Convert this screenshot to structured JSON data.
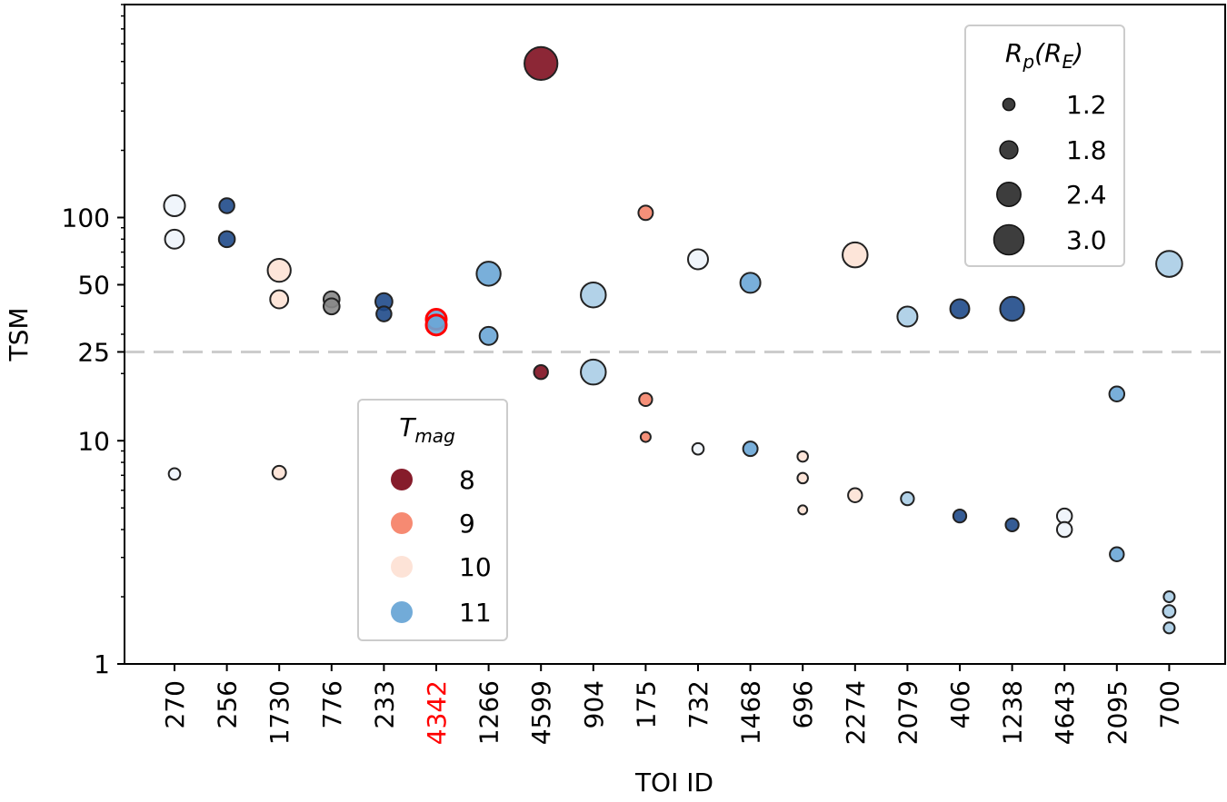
{
  "chart_data": {
    "type": "scatter",
    "xlabel": "TOI ID",
    "ylabel": "TSM",
    "yscale": "log",
    "ylim": [
      1,
      900
    ],
    "yticks": [
      {
        "value": 1,
        "label": "1"
      },
      {
        "value": 10,
        "label": "10"
      },
      {
        "value": 25,
        "label": "25"
      },
      {
        "value": 50,
        "label": "50"
      },
      {
        "value": 100,
        "label": "100"
      }
    ],
    "threshold": {
      "value": 25,
      "style": "dashed",
      "color": "#cccccc"
    },
    "categories": [
      "270",
      "256",
      "1730",
      "776",
      "233",
      "4342",
      "1266",
      "4599",
      "904",
      "175",
      "732",
      "1468",
      "696",
      "2274",
      "2079",
      "406",
      "1238",
      "4643",
      "2095",
      "700"
    ],
    "highlight_category": "4342",
    "highlight_color": "#ff0000",
    "tmag_colors": {
      "8": "#7f1020",
      "9": "#f5846a",
      "10": "#fde2d5",
      "11": "#6aa6d6",
      "11.3": "#aacde6",
      "12": "#eef4fb",
      "12.5": "#4d8cc8",
      "13": "#1f4a89"
    },
    "legend_rp": {
      "title_main": "R",
      "title_sub": "p",
      "title_paren": "(R",
      "title_paren_sub": "E",
      "title_close": ")",
      "entries": [
        {
          "label": "1.2",
          "rp": 1.2
        },
        {
          "label": "1.8",
          "rp": 1.8
        },
        {
          "label": "2.4",
          "rp": 2.4
        },
        {
          "label": "3.0",
          "rp": 3.0
        }
      ]
    },
    "legend_tmag": {
      "title_main": "T",
      "title_sub": "mag",
      "entries": [
        {
          "label": "8",
          "tmag": 8
        },
        {
          "label": "9",
          "tmag": 9
        },
        {
          "label": "10",
          "tmag": 10
        },
        {
          "label": "11",
          "tmag": 11
        }
      ]
    },
    "points": [
      {
        "toi": "270",
        "tsm": 113,
        "rp": 2.1,
        "tmag": 12
      },
      {
        "toi": "270",
        "tsm": 80,
        "rp": 1.9,
        "tmag": 12
      },
      {
        "toi": "270",
        "tsm": 7.1,
        "rp": 1.15,
        "tmag": 12
      },
      {
        "toi": "256",
        "tsm": 113,
        "rp": 1.5,
        "tmag": 13
      },
      {
        "toi": "256",
        "tsm": 80,
        "rp": 1.6,
        "tmag": 13
      },
      {
        "toi": "1730",
        "tsm": 58,
        "rp": 2.3,
        "tmag": 10
      },
      {
        "toi": "1730",
        "tsm": 43,
        "rp": 1.8,
        "tmag": 10
      },
      {
        "toi": "1730",
        "tsm": 7.2,
        "rp": 1.35,
        "tmag": 10
      },
      {
        "toi": "776",
        "tsm": 43,
        "rp": 1.6,
        "tmag": 9.6
      },
      {
        "toi": "776",
        "tsm": 40,
        "rp": 1.6,
        "tmag": 9.6
      },
      {
        "toi": "233",
        "tsm": 42,
        "rp": 1.7,
        "tmag": 13
      },
      {
        "toi": "233",
        "tsm": 37,
        "rp": 1.5,
        "tmag": 13
      },
      {
        "toi": "4342",
        "tsm": 35,
        "rp": 2.0,
        "tmag": 11,
        "highlight": true
      },
      {
        "toi": "4342",
        "tsm": 33,
        "rp": 2.0,
        "tmag": 11,
        "highlight": true
      },
      {
        "toi": "1266",
        "tsm": 56,
        "rp": 2.4,
        "tmag": 11
      },
      {
        "toi": "1266",
        "tsm": 29.5,
        "rp": 1.8,
        "tmag": 11
      },
      {
        "toi": "4599",
        "tsm": 490,
        "rp": 3.3,
        "tmag": 8
      },
      {
        "toi": "4599",
        "tsm": 20.3,
        "rp": 1.4,
        "tmag": 8
      },
      {
        "toi": "904",
        "tsm": 45,
        "rp": 2.5,
        "tmag": 11.3
      },
      {
        "toi": "904",
        "tsm": 20.3,
        "rp": 2.5,
        "tmag": 11.3
      },
      {
        "toi": "175",
        "tsm": 105,
        "rp": 1.45,
        "tmag": 9
      },
      {
        "toi": "175",
        "tsm": 15.3,
        "rp": 1.3,
        "tmag": 9
      },
      {
        "toi": "175",
        "tsm": 10.4,
        "rp": 1.0,
        "tmag": 9
      },
      {
        "toi": "732",
        "tsm": 65,
        "rp": 2.0,
        "tmag": 12
      },
      {
        "toi": "732",
        "tsm": 9.2,
        "rp": 1.15,
        "tmag": 12
      },
      {
        "toi": "1468",
        "tsm": 51,
        "rp": 2.0,
        "tmag": 11
      },
      {
        "toi": "1468",
        "tsm": 9.2,
        "rp": 1.45,
        "tmag": 11
      },
      {
        "toi": "696",
        "tsm": 8.5,
        "rp": 1.05,
        "tmag": 10
      },
      {
        "toi": "696",
        "tsm": 6.8,
        "rp": 1.05,
        "tmag": 10
      },
      {
        "toi": "696",
        "tsm": 4.9,
        "rp": 0.9,
        "tmag": 10
      },
      {
        "toi": "2274",
        "tsm": 68,
        "rp": 2.5,
        "tmag": 10
      },
      {
        "toi": "2274",
        "tsm": 5.7,
        "rp": 1.4,
        "tmag": 10
      },
      {
        "toi": "2079",
        "tsm": 36,
        "rp": 2.0,
        "tmag": 11.3
      },
      {
        "toi": "2079",
        "tsm": 5.5,
        "rp": 1.3,
        "tmag": 11.3
      },
      {
        "toi": "406",
        "tsm": 39,
        "rp": 1.9,
        "tmag": 13
      },
      {
        "toi": "406",
        "tsm": 4.6,
        "rp": 1.3,
        "tmag": 13
      },
      {
        "toi": "1238",
        "tsm": 39,
        "rp": 2.4,
        "tmag": 13
      },
      {
        "toi": "1238",
        "tsm": 4.2,
        "rp": 1.3,
        "tmag": 13
      },
      {
        "toi": "4643",
        "tsm": 4.6,
        "rp": 1.5,
        "tmag": 12
      },
      {
        "toi": "4643",
        "tsm": 4.0,
        "rp": 1.5,
        "tmag": 12
      },
      {
        "toi": "2095",
        "tsm": 16.2,
        "rp": 1.5,
        "tmag": 11
      },
      {
        "toi": "2095",
        "tsm": 3.1,
        "rp": 1.4,
        "tmag": 11
      },
      {
        "toi": "700",
        "tsm": 62,
        "rp": 2.6,
        "tmag": 11.3
      },
      {
        "toi": "700",
        "tsm": 2.0,
        "rp": 1.1,
        "tmag": 11.3
      },
      {
        "toi": "700",
        "tsm": 1.72,
        "rp": 1.25,
        "tmag": 11.3
      },
      {
        "toi": "700",
        "tsm": 1.45,
        "rp": 1.1,
        "tmag": 11.3
      }
    ]
  }
}
